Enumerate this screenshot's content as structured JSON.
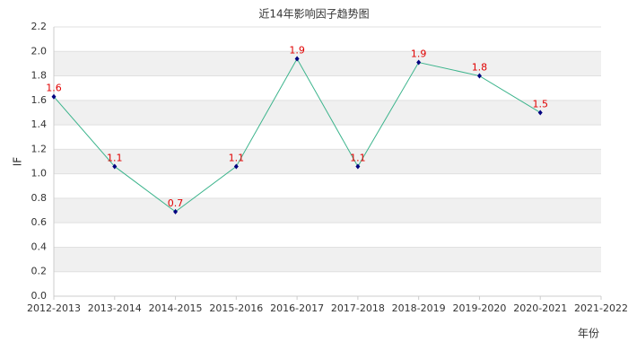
{
  "chart_data": {
    "type": "line",
    "title": "近14年影响因子趋势图",
    "x_label": "年份",
    "y_label": "IF",
    "categories": [
      "2012-2013",
      "2013-2014",
      "2014-2015",
      "2015-2016",
      "2016-2017",
      "2017-2018",
      "2018-2019",
      "2019-2020",
      "2020-2021",
      "2021-2022"
    ],
    "series": [
      {
        "name": "IF",
        "color": "#3cb48c",
        "marker_color": "#000080",
        "values": [
          1.63,
          1.06,
          0.69,
          1.06,
          1.94,
          1.06,
          1.91,
          1.8,
          1.5,
          null
        ],
        "value_labels": [
          "1.6",
          "1.1",
          "0.7",
          "1.1",
          "1.9",
          "1.1",
          "1.9",
          "1.8",
          "1.5",
          null
        ],
        "label_color": "#e00000"
      }
    ],
    "ylim": [
      0,
      2.2
    ],
    "yticks": [
      {
        "value": 0,
        "label": "0.0"
      },
      0.2,
      0.4,
      0.6,
      0.8,
      {
        "value": 1,
        "label": "1.0"
      },
      1.2,
      1.4,
      1.6,
      1.8,
      {
        "value": 2,
        "label": "2.0"
      },
      2.2
    ],
    "grid": true,
    "stripe_color": "#f0f0f0"
  }
}
